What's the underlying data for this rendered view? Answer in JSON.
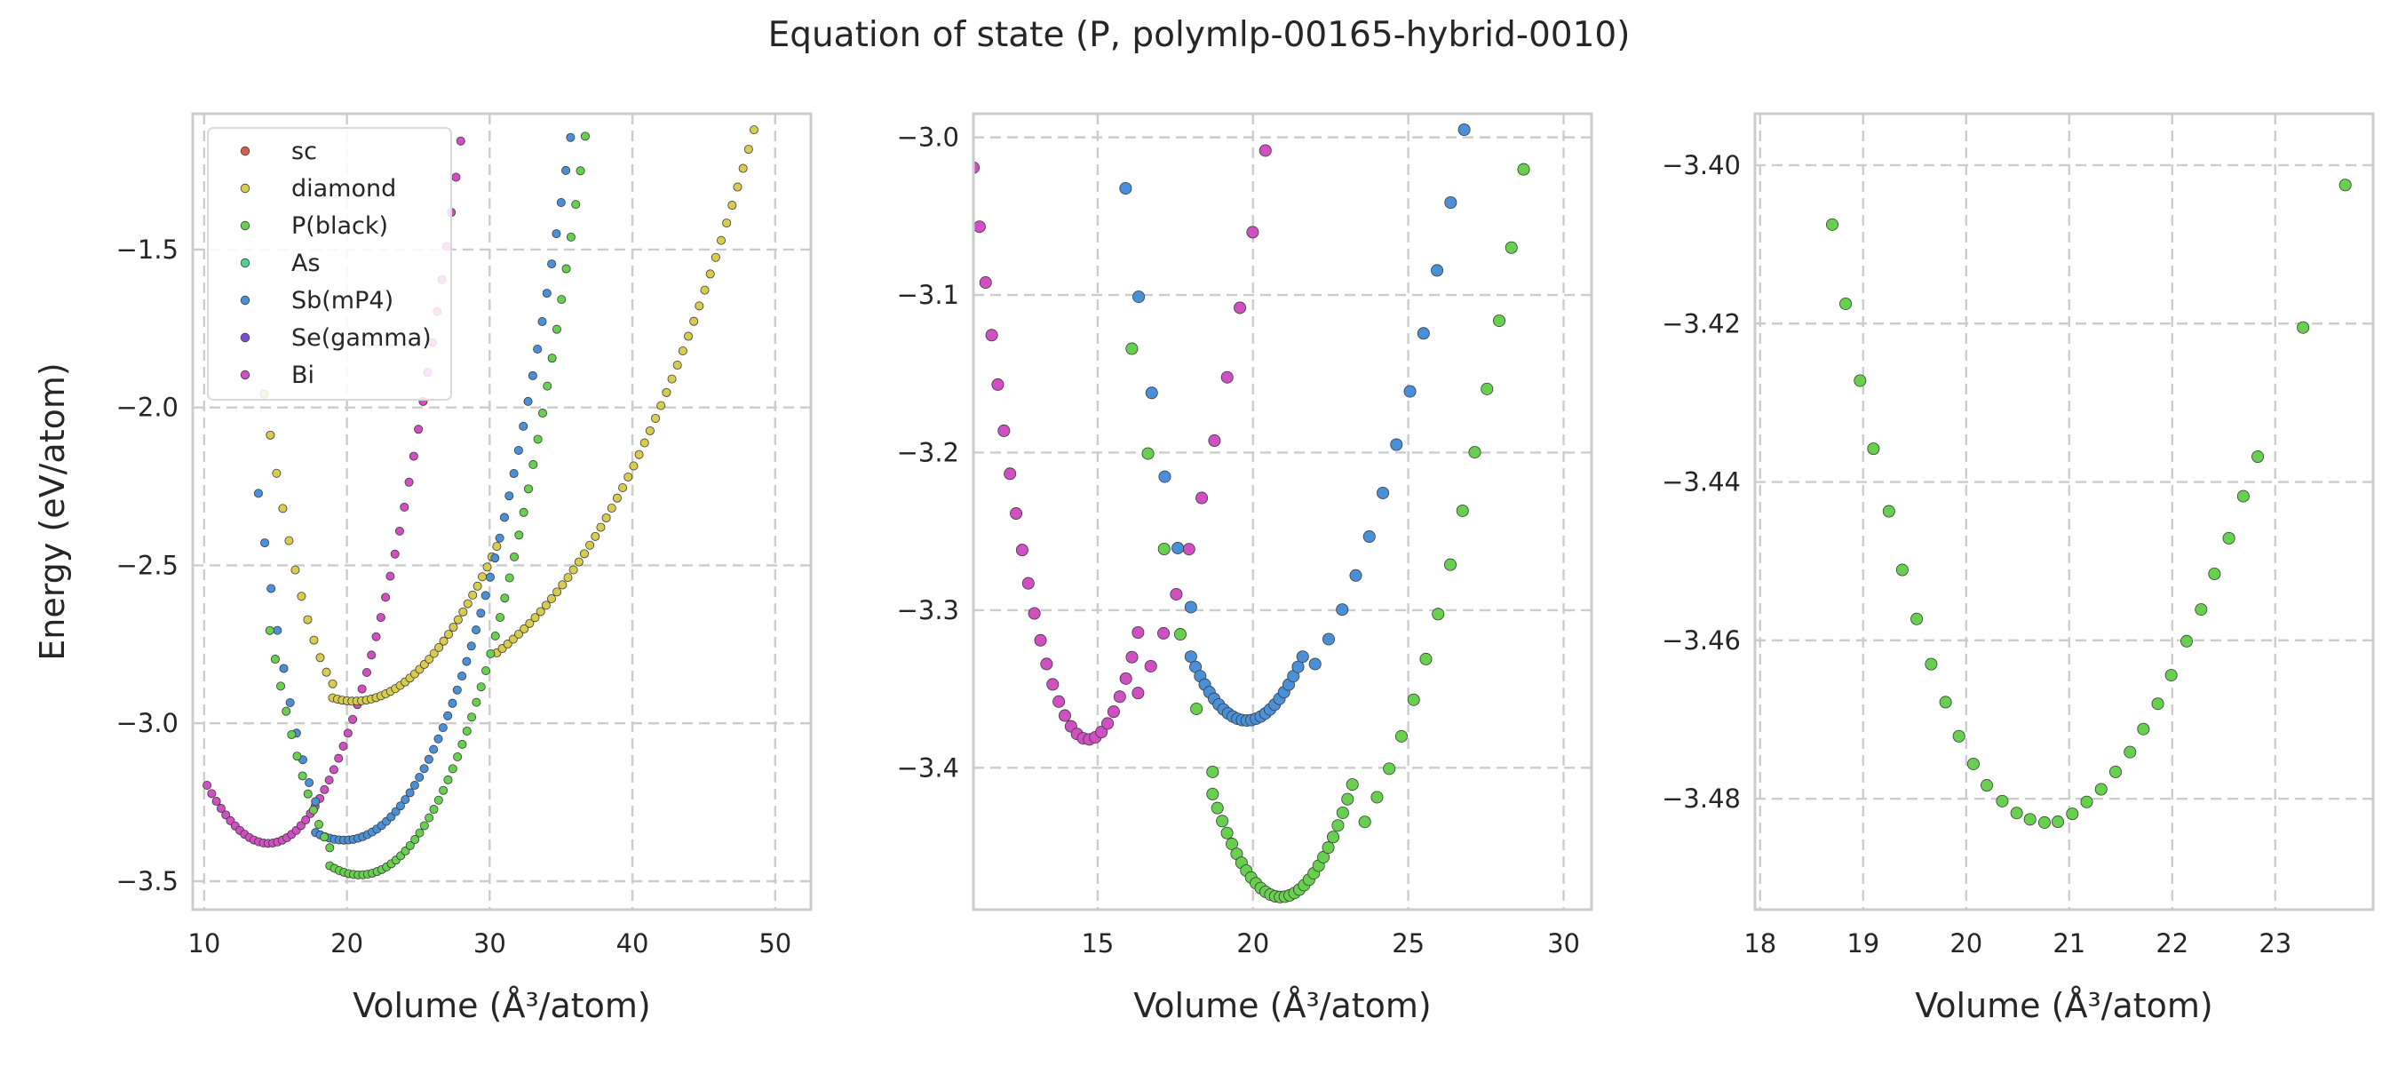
{
  "figure": {
    "title": "Equation of state (P, polymlp-00165-hybrid-0010)"
  },
  "colors": {
    "sc": "#d6604d",
    "diamond": "#d8cb4e",
    "P(black)": "#67d04f",
    "As": "#4fd38f",
    "Sb(mP4)": "#4a90d9",
    "Se(gamma)": "#7b4fd0",
    "Bi": "#d04fc2",
    "frame": "#cccccc",
    "grid": "#cccccc"
  },
  "chart_data": [
    {
      "type": "scatter",
      "xlabel": "Volume (Å³/atom)",
      "ylabel": "Energy (eV/atom)",
      "xlim": [
        9.2,
        52.5
      ],
      "ylim": [
        -3.59,
        -1.07
      ],
      "xticks": [
        10,
        20,
        30,
        40,
        50
      ],
      "yticks": [
        -3.5,
        -3.0,
        -2.5,
        -2.0,
        -1.5
      ],
      "ytick_labels": [
        "−3.5",
        "−3.0",
        "−2.5",
        "−2.0",
        "−1.5"
      ],
      "grid": true,
      "legend": {
        "position": "top-left",
        "entries": [
          "sc",
          "diamond",
          "P(black)",
          "As",
          "Sb(mP4)",
          "Se(gamma)",
          "Bi"
        ]
      },
      "series": [
        {
          "name": "Bi",
          "curves": [
            {
              "x_range": [
                10.2,
                36.2
              ],
              "n": 80,
              "v0": 14.5,
              "e0": -3.38,
              "a": 0.0105,
              "b": 0.00013
            }
          ]
        },
        {
          "name": "diamond",
          "curves": [
            {
              "x_range": [
                14.2,
                19.0
              ],
              "n": 12,
              "v0": 20.5,
              "e0": -2.93,
              "a": 0.0245,
              "b": 0
            },
            {
              "x_range": [
                19.0,
                30.5
              ],
              "n": 35,
              "v0": 20.5,
              "e0": -2.93,
              "a": 0.0047,
              "b": 2e-05
            },
            {
              "x_range": [
                30.5,
                51.2
              ],
              "n": 55,
              "v0": 20.5,
              "e0": -2.93,
              "a": 0.0011,
              "b": 4.3e-05
            }
          ]
        },
        {
          "name": "Sb(mP4)",
          "curves": [
            {
              "x_range": [
                13.8,
                17.8
              ],
              "n": 10,
              "v0": 19.8,
              "e0": -3.37,
              "a": 0.0305,
              "b": 0
            },
            {
              "x_range": [
                17.8,
                48.9
              ],
              "n": 95,
              "v0": 19.8,
              "e0": -3.37,
              "a": 0.0063,
              "b": 0.00016
            }
          ]
        },
        {
          "name": "P(black)",
          "curves": [
            {
              "x_range": [
                14.6,
                18.8
              ],
              "n": 12,
              "v0": 20.9,
              "e0": -3.48,
              "a": 0.0195,
              "b": 0
            },
            {
              "x_range": [
                18.8,
                51.6
              ],
              "n": 100,
              "v0": 20.9,
              "e0": -3.48,
              "a": 0.0069,
              "b": 0.000157
            }
          ]
        }
      ]
    },
    {
      "type": "scatter",
      "xlabel": "Volume (Å³/atom)",
      "ylabel": "",
      "xlim": [
        11.0,
        30.9
      ],
      "ylim": [
        -3.49,
        -2.985
      ],
      "xticks": [
        15,
        20,
        25,
        30
      ],
      "yticks": [
        -3.4,
        -3.3,
        -3.2,
        -3.1,
        -3.0
      ],
      "ytick_labels": [
        "−3.4",
        "−3.3",
        "−3.2",
        "−3.1",
        "−3.0"
      ],
      "grid": true,
      "series": [
        {
          "name": "Bi",
          "curves": [
            {
              "x_range": [
                11.0,
                16.3
              ],
              "n": 28,
              "v0": 14.7,
              "e0": -3.382,
              "a": 0.0265,
              "b": 0
            },
            {
              "x_range": [
                16.3,
                20.4
              ],
              "n": 11,
              "v0": 14.7,
              "e0": -3.382,
              "a": 0.0115,
              "b": 0
            }
          ]
        },
        {
          "name": "Sb(mP4)",
          "curves": [
            {
              "x_range": [
                15.9,
                18.0
              ],
              "n": 6,
              "v0": 19.8,
              "e0": -3.37,
              "a": 0.0222,
              "b": 0
            },
            {
              "x_range": [
                18.0,
                21.6
              ],
              "n": 25,
              "v0": 19.8,
              "e0": -3.37,
              "a": 0.0125,
              "b": 0
            },
            {
              "x_range": [
                22.0,
                26.8
              ],
              "n": 12,
              "v0": 19.8,
              "e0": -3.37,
              "a": 0.0073,
              "b": 5e-05
            }
          ]
        },
        {
          "name": "P(black)",
          "curves": [
            {
              "x_range": [
                16.1,
                18.7
              ],
              "n": 6,
              "v0": 20.9,
              "e0": -3.482,
              "a": 0.0175,
              "b": 0.0005
            },
            {
              "x_range": [
                18.7,
                23.2
              ],
              "n": 30,
              "v0": 20.9,
              "e0": -3.482,
              "a": 0.0135,
              "b": 0
            },
            {
              "x_range": [
                23.6,
                29.5
              ],
              "n": 16,
              "v0": 20.9,
              "e0": -3.482,
              "a": 0.006,
              "b": 0.0002
            }
          ]
        }
      ]
    },
    {
      "type": "scatter",
      "xlabel": "Volume (Å³/atom)",
      "ylabel": "",
      "xlim": [
        17.95,
        23.95
      ],
      "ylim": [
        -3.494,
        -3.3935
      ],
      "xticks": [
        18,
        19,
        20,
        21,
        22,
        23
      ],
      "yticks": [
        -3.48,
        -3.46,
        -3.44,
        -3.42,
        -3.4
      ],
      "ytick_labels": [
        "−3.48",
        "−3.46",
        "−3.44",
        "−3.42",
        "−3.40"
      ],
      "grid": true,
      "series": [
        {
          "name": "P(black)",
          "points": [
            [
              18.7,
              -3.4075
            ],
            [
              18.83,
              -3.4175
            ],
            [
              18.97,
              -3.4272
            ],
            [
              19.1,
              -3.4358
            ],
            [
              19.25,
              -3.4437
            ],
            [
              19.38,
              -3.4511
            ],
            [
              19.52,
              -3.4573
            ],
            [
              19.66,
              -3.463
            ],
            [
              19.8,
              -3.4678
            ],
            [
              19.93,
              -3.4721
            ],
            [
              20.07,
              -3.4756
            ],
            [
              20.2,
              -3.4783
            ],
            [
              20.35,
              -3.4803
            ],
            [
              20.49,
              -3.4818
            ],
            [
              20.62,
              -3.4826
            ],
            [
              20.76,
              -3.483
            ],
            [
              20.89,
              -3.4829
            ],
            [
              21.03,
              -3.4819
            ],
            [
              21.17,
              -3.4804
            ],
            [
              21.31,
              -3.4788
            ],
            [
              21.45,
              -3.4766
            ],
            [
              21.59,
              -3.4741
            ],
            [
              21.72,
              -3.4712
            ],
            [
              21.86,
              -3.468
            ],
            [
              21.99,
              -3.4644
            ],
            [
              22.14,
              -3.4601
            ],
            [
              22.28,
              -3.4561
            ],
            [
              22.41,
              -3.4516
            ],
            [
              22.55,
              -3.4471
            ],
            [
              22.69,
              -3.4418
            ],
            [
              22.83,
              -3.4368
            ],
            [
              23.27,
              -3.4205
            ],
            [
              23.68,
              -3.4025
            ]
          ]
        }
      ]
    }
  ]
}
